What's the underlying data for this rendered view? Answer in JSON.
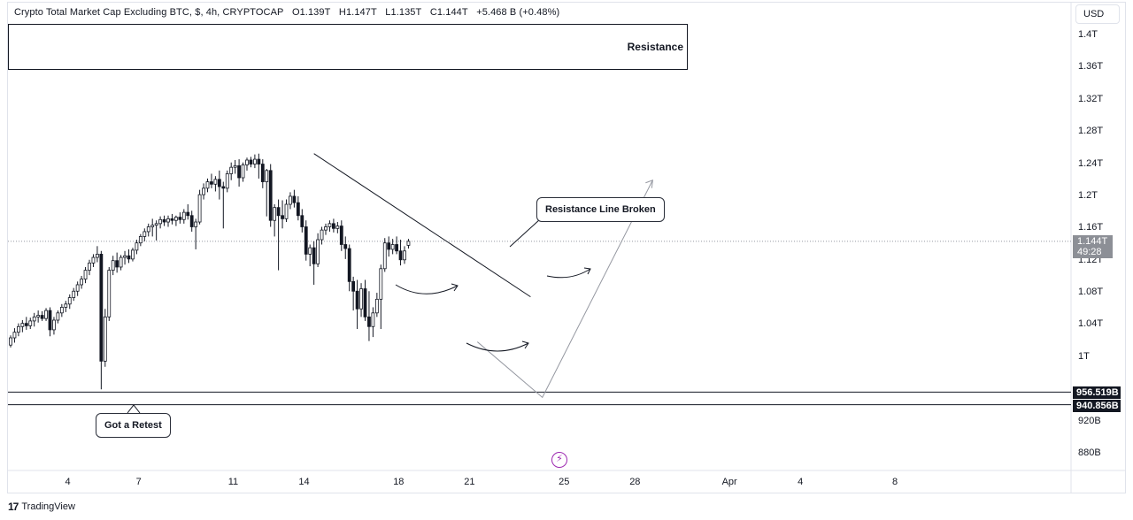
{
  "header": {
    "symbol_title": "Crypto Total Market Cap Excluding BTC, $, 4h, CRYPTOCAP",
    "ohlc": {
      "open": "O1.139T",
      "high": "H1.147T",
      "low": "L1.135T",
      "close": "C1.144T",
      "change": "+5.468 B (+0.48%)"
    }
  },
  "currency_button": "USD",
  "annotations": {
    "resistance_box": "Resistance",
    "resistance_line_broken": "Resistance Line Broken",
    "got_a_retest": "Got a Retest"
  },
  "price_tags": {
    "last_price": "1.144T",
    "countdown": "49:28",
    "level_upper": "956.519B",
    "level_lower": "940.856B"
  },
  "footer": {
    "brand": "TradingView"
  },
  "colors": {
    "candle_up": "#ffffff",
    "candle_down": "#131722",
    "candle_border": "#131722",
    "accent_icon": "#9c27b0"
  },
  "chart_data": {
    "type": "candlestick",
    "title": "Crypto Total Market Cap Excluding BTC, $, 4h, CRYPTOCAP",
    "interval": "4h",
    "currency": "USD",
    "y_unit": "USD",
    "ylim": [
      862000000000,
      1438000000000
    ],
    "y_ticks": [
      "1.4T",
      "1.36T",
      "1.32T",
      "1.28T",
      "1.24T",
      "1.2T",
      "1.16T",
      "1.12T",
      "1.08T",
      "1.04T",
      "1T",
      "920B",
      "880B"
    ],
    "y_tick_values": [
      1400000000000.0,
      1360000000000.0,
      1320000000000.0,
      1280000000000.0,
      1240000000000.0,
      1200000000000.0,
      1160000000000.0,
      1120000000000.0,
      1080000000000.0,
      1040000000000.0,
      1000000000000.0,
      920000000000.0,
      880000000000.0
    ],
    "x_ticks": [
      "4",
      "7",
      "11",
      "14",
      "18",
      "21",
      "25",
      "28",
      "Apr",
      "4",
      "8"
    ],
    "x_tick_bars": [
      14.5,
      32.5,
      56.5,
      74.5,
      98.5,
      116.5,
      140.5,
      158.5,
      182.5,
      200.5,
      224.5
    ],
    "horizontal_levels": [
      {
        "label": "956.519B",
        "value": 956519000000
      },
      {
        "label": "940.856B",
        "value": 940856000000
      }
    ],
    "resistance_zone": {
      "low": 1355000000000.0,
      "high": 1412000000000.0,
      "label": "Resistance"
    },
    "trendline": {
      "from": {
        "bar": 77,
        "value": 1253000000000.0
      },
      "to": {
        "bar": 132,
        "value": 1075000000000.0
      }
    },
    "projection_path": [
      {
        "bar": 118.5,
        "value": 1019000000000.0
      },
      {
        "bar": 135.0,
        "value": 950000000000.0
      },
      {
        "bar": 163.0,
        "value": 1220000000000.0
      }
    ],
    "last_price": 1144000000000.0,
    "candles": [
      [
        1015000000000.0,
        1027000000000.0,
        1012000000000.0,
        1024000000000.0
      ],
      [
        1024000000000.0,
        1036000000000.0,
        1018000000000.0,
        1031000000000.0
      ],
      [
        1031000000000.0,
        1042000000000.0,
        1026000000000.0,
        1038000000000.0
      ],
      [
        1038000000000.0,
        1046000000000.0,
        1031000000000.0,
        1042000000000.0
      ],
      [
        1042000000000.0,
        1050000000000.0,
        1034000000000.0,
        1039000000000.0
      ],
      [
        1039000000000.0,
        1049000000000.0,
        1035000000000.0,
        1045000000000.0
      ],
      [
        1045000000000.0,
        1055000000000.0,
        1038000000000.0,
        1050000000000.0
      ],
      [
        1050000000000.0,
        1058000000000.0,
        1043000000000.0,
        1052000000000.0
      ],
      [
        1052000000000.0,
        1057000000000.0,
        1045000000000.0,
        1048000000000.0
      ],
      [
        1048000000000.0,
        1061000000000.0,
        1045000000000.0,
        1058000000000.0
      ],
      [
        1058000000000.0,
        1062000000000.0,
        1026000000000.0,
        1034000000000.0
      ],
      [
        1034000000000.0,
        1050000000000.0,
        1028000000000.0,
        1046000000000.0
      ],
      [
        1046000000000.0,
        1058000000000.0,
        1042000000000.0,
        1055000000000.0
      ],
      [
        1055000000000.0,
        1066000000000.0,
        1050000000000.0,
        1062000000000.0
      ],
      [
        1062000000000.0,
        1070000000000.0,
        1056000000000.0,
        1066000000000.0
      ],
      [
        1066000000000.0,
        1078000000000.0,
        1060000000000.0,
        1074000000000.0
      ],
      [
        1074000000000.0,
        1086000000000.0,
        1070000000000.0,
        1082000000000.0
      ],
      [
        1082000000000.0,
        1094000000000.0,
        1076000000000.0,
        1090000000000.0
      ],
      [
        1090000000000.0,
        1101000000000.0,
        1085000000000.0,
        1097000000000.0
      ],
      [
        1097000000000.0,
        1112000000000.0,
        1092000000000.0,
        1108000000000.0
      ],
      [
        1108000000000.0,
        1121000000000.0,
        1102000000000.0,
        1117000000000.0
      ],
      [
        1117000000000.0,
        1128000000000.0,
        1112000000000.0,
        1124000000000.0
      ],
      [
        1124000000000.0,
        1138000000000.0,
        1118000000000.0,
        1128000000000.0
      ],
      [
        1128000000000.0,
        1132000000000.0,
        960000000000.0,
        995000000000.0
      ],
      [
        995000000000.0,
        1060000000000.0,
        988000000000.0,
        1050000000000.0
      ],
      [
        1050000000000.0,
        1112000000000.0,
        1045000000000.0,
        1108000000000.0
      ],
      [
        1108000000000.0,
        1126000000000.0,
        1102000000000.0,
        1120000000000.0
      ],
      [
        1120000000000.0,
        1130000000000.0,
        1105000000000.0,
        1112000000000.0
      ],
      [
        1112000000000.0,
        1127000000000.0,
        1108000000000.0,
        1124000000000.0
      ],
      [
        1124000000000.0,
        1132000000000.0,
        1115000000000.0,
        1126000000000.0
      ],
      [
        1126000000000.0,
        1134000000000.0,
        1117000000000.0,
        1122000000000.0
      ],
      [
        1122000000000.0,
        1136000000000.0,
        1119000000000.0,
        1133000000000.0
      ],
      [
        1133000000000.0,
        1146000000000.0,
        1128000000000.0,
        1142000000000.0
      ],
      [
        1142000000000.0,
        1153000000000.0,
        1138000000000.0,
        1150000000000.0
      ],
      [
        1150000000000.0,
        1160000000000.0,
        1144000000000.0,
        1156000000000.0
      ],
      [
        1156000000000.0,
        1166000000000.0,
        1150000000000.0,
        1162000000000.0
      ],
      [
        1162000000000.0,
        1172000000000.0,
        1150000000000.0,
        1164000000000.0
      ],
      [
        1164000000000.0,
        1170000000000.0,
        1145000000000.0,
        1166000000000.0
      ],
      [
        1166000000000.0,
        1175000000000.0,
        1160000000000.0,
        1171000000000.0
      ],
      [
        1171000000000.0,
        1176000000000.0,
        1163000000000.0,
        1168000000000.0
      ],
      [
        1168000000000.0,
        1176000000000.0,
        1162000000000.0,
        1172000000000.0
      ],
      [
        1172000000000.0,
        1178000000000.0,
        1165000000000.0,
        1170000000000.0
      ],
      [
        1170000000000.0,
        1176000000000.0,
        1163000000000.0,
        1174000000000.0
      ],
      [
        1174000000000.0,
        1180000000000.0,
        1166000000000.0,
        1171000000000.0
      ],
      [
        1171000000000.0,
        1184000000000.0,
        1166000000000.0,
        1180000000000.0
      ],
      [
        1180000000000.0,
        1190000000000.0,
        1171000000000.0,
        1176000000000.0
      ],
      [
        1176000000000.0,
        1182000000000.0,
        1156000000000.0,
        1162000000000.0
      ],
      [
        1162000000000.0,
        1172000000000.0,
        1134000000000.0,
        1168000000000.0
      ],
      [
        1168000000000.0,
        1208000000000.0,
        1165000000000.0,
        1202000000000.0
      ],
      [
        1202000000000.0,
        1216000000000.0,
        1196000000000.0,
        1210000000000.0
      ],
      [
        1210000000000.0,
        1222000000000.0,
        1205000000000.0,
        1218000000000.0
      ],
      [
        1218000000000.0,
        1228000000000.0,
        1210000000000.0,
        1215000000000.0
      ],
      [
        1215000000000.0,
        1225000000000.0,
        1206000000000.0,
        1221000000000.0
      ],
      [
        1221000000000.0,
        1232000000000.0,
        1196000000000.0,
        1212000000000.0
      ],
      [
        1212000000000.0,
        1218000000000.0,
        1160000000000.0,
        1210000000000.0
      ],
      [
        1210000000000.0,
        1232000000000.0,
        1205000000000.0,
        1228000000000.0
      ],
      [
        1228000000000.0,
        1242000000000.0,
        1220000000000.0,
        1236000000000.0
      ],
      [
        1236000000000.0,
        1245000000000.0,
        1228000000000.0,
        1238000000000.0
      ],
      [
        1238000000000.0,
        1246000000000.0,
        1212000000000.0,
        1223000000000.0
      ],
      [
        1223000000000.0,
        1242000000000.0,
        1218000000000.0,
        1239000000000.0
      ],
      [
        1239000000000.0,
        1248000000000.0,
        1232000000000.0,
        1245000000000.0
      ],
      [
        1245000000000.0,
        1249000000000.0,
        1236000000000.0,
        1240000000000.0
      ],
      [
        1240000000000.0,
        1252000000000.0,
        1235000000000.0,
        1246000000000.0
      ],
      [
        1246000000000.0,
        1253000000000.0,
        1222000000000.0,
        1240000000000.0
      ],
      [
        1240000000000.0,
        1246000000000.0,
        1210000000000.0,
        1218000000000.0
      ],
      [
        1218000000000.0,
        1234000000000.0,
        1175000000000.0,
        1232000000000.0
      ],
      [
        1232000000000.0,
        1240000000000.0,
        1162000000000.0,
        1170000000000.0
      ],
      [
        1170000000000.0,
        1190000000000.0,
        1150000000000.0,
        1186000000000.0
      ],
      [
        1186000000000.0,
        1196000000000.0,
        1108000000000.0,
        1176000000000.0
      ],
      [
        1176000000000.0,
        1195000000000.0,
        1160000000000.0,
        1172000000000.0
      ],
      [
        1172000000000.0,
        1196000000000.0,
        1168000000000.0,
        1190000000000.0
      ],
      [
        1190000000000.0,
        1205000000000.0,
        1184000000000.0,
        1200000000000.0
      ],
      [
        1200000000000.0,
        1208000000000.0,
        1186000000000.0,
        1192000000000.0
      ],
      [
        1192000000000.0,
        1200000000000.0,
        1170000000000.0,
        1176000000000.0
      ],
      [
        1176000000000.0,
        1184000000000.0,
        1155000000000.0,
        1162000000000.0
      ],
      [
        1162000000000.0,
        1170000000000.0,
        1120000000000.0,
        1128000000000.0
      ],
      [
        1128000000000.0,
        1140000000000.0,
        1113000000000.0,
        1136000000000.0
      ],
      [
        1136000000000.0,
        1144000000000.0,
        1090000000000.0,
        1116000000000.0
      ],
      [
        1116000000000.0,
        1154000000000.0,
        1112000000000.0,
        1146000000000.0
      ],
      [
        1146000000000.0,
        1162000000000.0,
        1140000000000.0,
        1158000000000.0
      ],
      [
        1158000000000.0,
        1166000000000.0,
        1152000000000.0,
        1162000000000.0
      ],
      [
        1162000000000.0,
        1170000000000.0,
        1156000000000.0,
        1166000000000.0
      ],
      [
        1166000000000.0,
        1172000000000.0,
        1155000000000.0,
        1160000000000.0
      ],
      [
        1160000000000.0,
        1168000000000.0,
        1154000000000.0,
        1163000000000.0
      ],
      [
        1163000000000.0,
        1170000000000.0,
        1132000000000.0,
        1140000000000.0
      ],
      [
        1140000000000.0,
        1150000000000.0,
        1122000000000.0,
        1135000000000.0
      ],
      [
        1135000000000.0,
        1140000000000.0,
        1082000000000.0,
        1094000000000.0
      ],
      [
        1094000000000.0,
        1100000000000.0,
        1058000000000.0,
        1082000000000.0
      ],
      [
        1082000000000.0,
        1096000000000.0,
        1035000000000.0,
        1060000000000.0
      ],
      [
        1060000000000.0,
        1092000000000.0,
        1050000000000.0,
        1085000000000.0
      ],
      [
        1085000000000.0,
        1096000000000.0,
        1045000000000.0,
        1050000000000.0
      ],
      [
        1050000000000.0,
        1082000000000.0,
        1020000000000.0,
        1038000000000.0
      ],
      [
        1038000000000.0,
        1062000000000.0,
        1025000000000.0,
        1055000000000.0
      ],
      [
        1055000000000.0,
        1080000000000.0,
        1050000000000.0,
        1072000000000.0
      ],
      [
        1072000000000.0,
        1115000000000.0,
        1035000000000.0,
        1110000000000.0
      ],
      [
        1110000000000.0,
        1148000000000.0,
        1106000000000.0,
        1142000000000.0
      ],
      [
        1142000000000.0,
        1150000000000.0,
        1125000000000.0,
        1134000000000.0
      ],
      [
        1134000000000.0,
        1147000000000.0,
        1128000000000.0,
        1140000000000.0
      ],
      [
        1140000000000.0,
        1150000000000.0,
        1128000000000.0,
        1132000000000.0
      ],
      [
        1132000000000.0,
        1146000000000.0,
        1114000000000.0,
        1121000000000.0
      ],
      [
        1121000000000.0,
        1138000000000.0,
        1116000000000.0,
        1132000000000.0
      ],
      [
        1139000000000.0,
        1147000000000.0,
        1135000000000.0,
        1144000000000.0
      ]
    ]
  }
}
